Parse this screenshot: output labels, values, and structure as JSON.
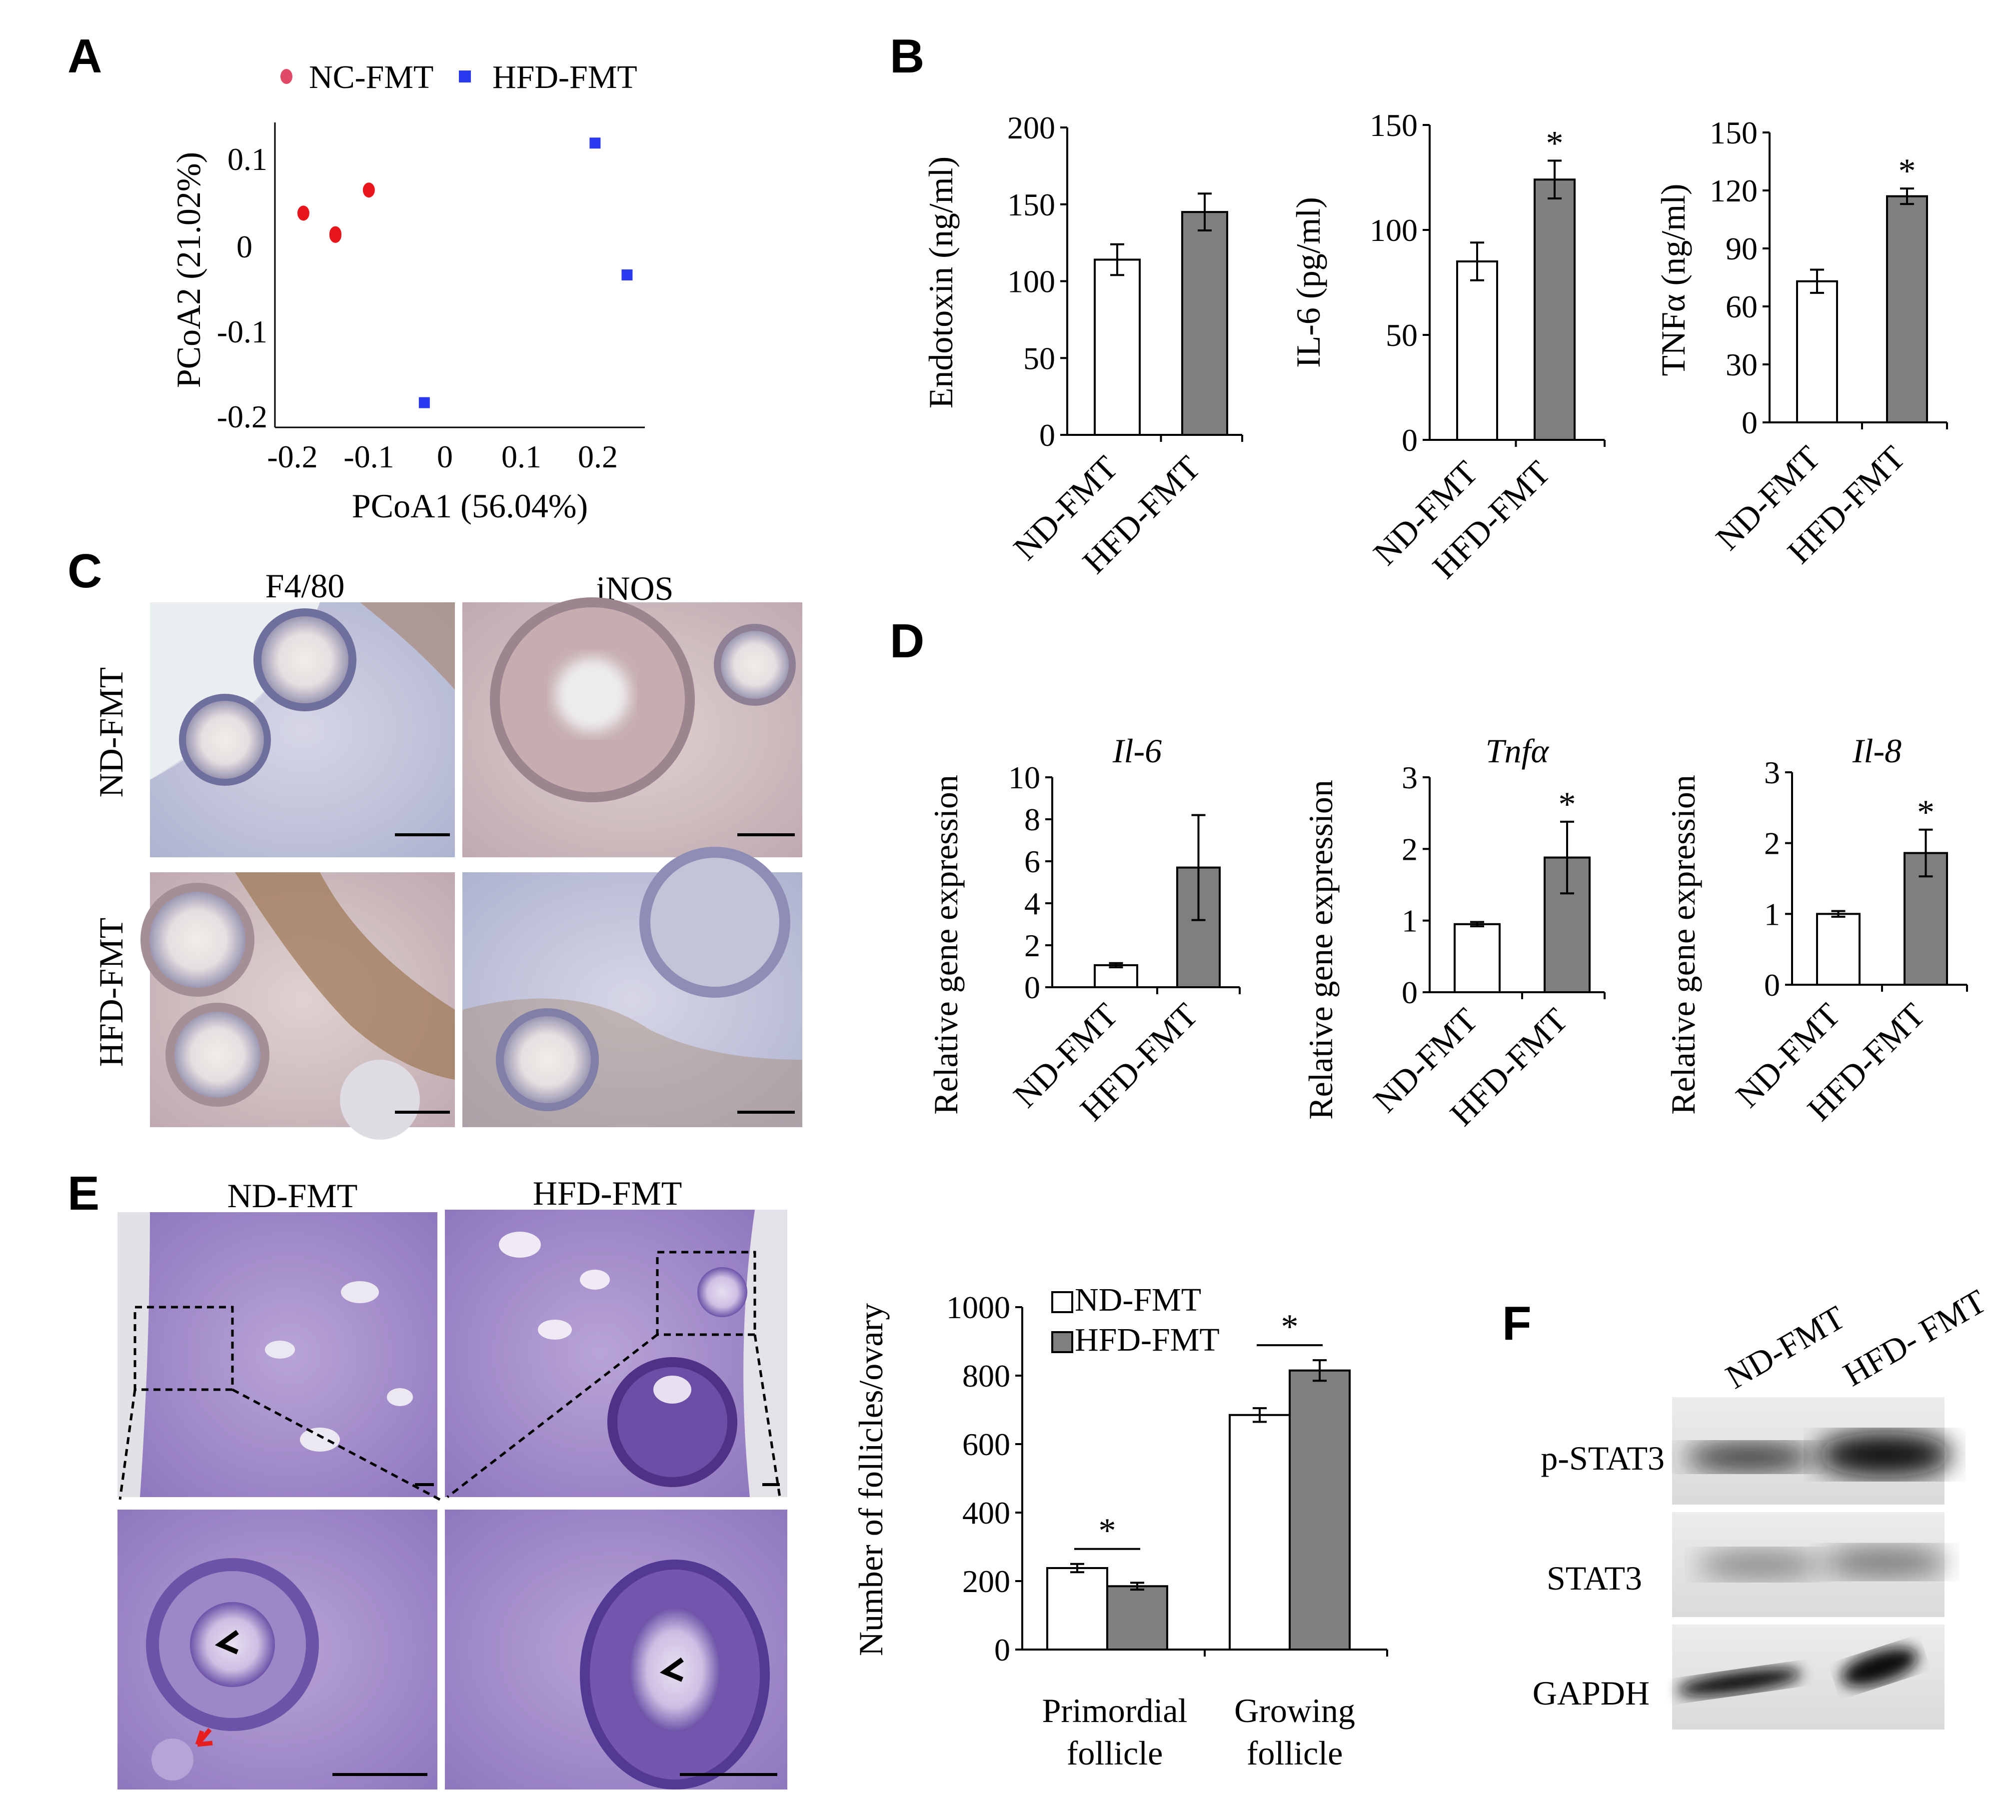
{
  "panels": {
    "A": "A",
    "B": "B",
    "C": "C",
    "D": "D",
    "E": "E",
    "F": "F"
  },
  "groups": {
    "nd": "ND-FMT",
    "hfd": "HFD-FMT"
  },
  "colors": {
    "nc_point": "#e8151b",
    "hfd_point": "#2b3af0",
    "bar_nd": "#ffffff",
    "bar_hfd": "#7f7f7f",
    "axis": "#000000"
  },
  "panelA": {
    "legend": [
      "NC-FMT",
      "HFD-FMT"
    ],
    "xlabel": "PCoA1 (56.04%)",
    "ylabel": "PCoA2 (21.02%)",
    "xticks": [
      "-0.2",
      "-0.1",
      "0",
      "0.1",
      "0.2"
    ],
    "yticks": [
      "0.1",
      "0",
      "-0.1",
      "-0.2"
    ]
  },
  "chart_data": [
    {
      "id": "A",
      "type": "scatter",
      "xlim": [
        -0.25,
        0.27
      ],
      "ylim": [
        -0.22,
        0.15
      ],
      "series": [
        {
          "name": "NC-FMT",
          "points": [
            [
              -0.21,
              0.04
            ],
            [
              -0.165,
              0.015
            ],
            [
              -0.165,
              0.013
            ],
            [
              -0.118,
              0.068
            ]
          ]
        },
        {
          "name": "HFD-FMT",
          "points": [
            [
              0.2,
              0.125
            ],
            [
              0.245,
              -0.035
            ],
            [
              -0.04,
              -0.19
            ]
          ]
        }
      ]
    },
    {
      "id": "B1",
      "type": "bar",
      "ylabel": "Endotoxin (ng/ml)",
      "ylim": [
        0,
        200
      ],
      "yticks": [
        "0",
        "50",
        "100",
        "150",
        "200"
      ],
      "categories": [
        "ND-FMT",
        "HFD-FMT"
      ],
      "values": [
        114,
        145
      ],
      "errors": [
        10,
        12
      ],
      "significance": [
        "",
        ""
      ]
    },
    {
      "id": "B2",
      "type": "bar",
      "ylabel": "IL-6 (pg/ml)",
      "ylim": [
        0,
        150
      ],
      "yticks": [
        "0",
        "50",
        "100",
        "150"
      ],
      "categories": [
        "ND-FMT",
        "HFD-FMT"
      ],
      "values": [
        85,
        124
      ],
      "errors": [
        9,
        9
      ],
      "significance": [
        "",
        "*"
      ]
    },
    {
      "id": "B3",
      "type": "bar",
      "ylabel": "TNFα (ng/ml)",
      "ylim": [
        0,
        150
      ],
      "yticks": [
        "0",
        "30",
        "60",
        "90",
        "120",
        "150"
      ],
      "categories": [
        "ND-FMT",
        "HFD-FMT"
      ],
      "values": [
        73,
        117
      ],
      "errors": [
        6,
        4
      ],
      "significance": [
        "",
        "*"
      ]
    },
    {
      "id": "D1",
      "type": "bar",
      "title": "Il-6",
      "ylabel": "Relative gene expression",
      "ylim": [
        0,
        10
      ],
      "yticks": [
        "0",
        "2",
        "4",
        "6",
        "8",
        "10"
      ],
      "categories": [
        "ND-FMT",
        "HFD-FMT"
      ],
      "values": [
        1.05,
        5.7
      ],
      "errors": [
        0.1,
        2.5
      ],
      "significance": [
        "",
        ""
      ]
    },
    {
      "id": "D2",
      "type": "bar",
      "title": "Tnfα",
      "ylabel": "Relative gene expression",
      "ylim": [
        0,
        3
      ],
      "yticks": [
        "0",
        "1",
        "2",
        "3"
      ],
      "categories": [
        "ND-FMT",
        "HFD-FMT"
      ],
      "values": [
        0.95,
        1.88
      ],
      "errors": [
        0.03,
        0.5
      ],
      "significance": [
        "",
        "*"
      ]
    },
    {
      "id": "D3",
      "type": "bar",
      "title": "Il-8",
      "ylabel": "Relative gene expression",
      "ylim": [
        0,
        3
      ],
      "yticks": [
        "0",
        "1",
        "2",
        "3"
      ],
      "categories": [
        "ND-FMT",
        "HFD-FMT"
      ],
      "values": [
        1.0,
        1.86
      ],
      "errors": [
        0.04,
        0.33
      ],
      "significance": [
        "",
        "*"
      ]
    },
    {
      "id": "E",
      "type": "bar",
      "ylabel": "Number of follicles/ovary",
      "ylim": [
        0,
        1000
      ],
      "yticks": [
        "0",
        "200",
        "400",
        "600",
        "800",
        "1000"
      ],
      "categories": [
        "Primordial follicle",
        "Growing follicle"
      ],
      "series": [
        {
          "name": "ND-FMT",
          "values": [
            238,
            685
          ],
          "errors": [
            12,
            20
          ]
        },
        {
          "name": "HFD-FMT",
          "values": [
            185,
            815
          ],
          "errors": [
            10,
            30
          ]
        }
      ],
      "significance": [
        "*",
        "*"
      ]
    }
  ],
  "panelC": {
    "columns": [
      "F4/80",
      "iNOS"
    ],
    "rows": [
      "ND-FMT",
      "HFD-FMT"
    ]
  },
  "panelE": {
    "columns": [
      "ND-FMT",
      "HFD-FMT"
    ],
    "categories": [
      [
        "Primordial",
        "follicle"
      ],
      [
        "Growing",
        "follicle"
      ]
    ]
  },
  "panelF": {
    "lanes": [
      "ND-FMT",
      "HFD- FMT"
    ],
    "bands": [
      "p-STAT3",
      "STAT3",
      "GAPDH"
    ]
  }
}
